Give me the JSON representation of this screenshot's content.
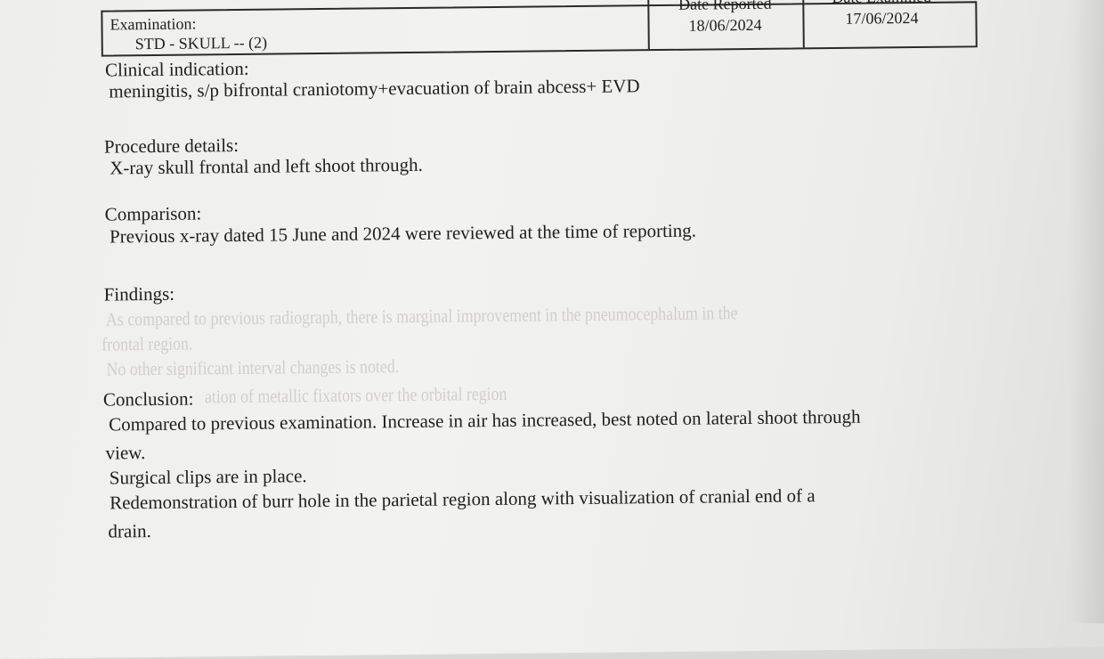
{
  "header": {
    "examination_label": "Examination:",
    "examination_value": "STD - SKULL -- (2)",
    "date_reported_label": "Date Reported",
    "date_reported_value": "18/06/2024",
    "date_examined_label": "Date Examined",
    "date_examined_value": "17/06/2024"
  },
  "clinical_indication": {
    "heading": "Clinical indication:",
    "text": "meningitis, s/p bifrontal craniotomy+evacuation of brain abcess+ EVD"
  },
  "procedure": {
    "heading": "Procedure details:",
    "text": "X-ray skull frontal and left shoot through."
  },
  "comparison": {
    "heading": "Comparison:",
    "text": "Previous x-ray dated 15 June and 2024 were reviewed at the time of reporting."
  },
  "findings": {
    "heading": "Findings:",
    "show_through_lines": [
      "As compared to previous radiograph, there is marginal improvement in the pneumocephalum in the",
      "frontal region.",
      "No other significant interval changes is noted.",
      "ation of metallic fixators over the orbital region"
    ]
  },
  "conclusion": {
    "heading": "Conclusion:",
    "lines": [
      "Compared to previous examination. Increase in air has increased, best noted on lateral shoot through",
      "view.",
      "Surgical clips are in place.",
      "Redemonstration of burr hole in the parietal region along with visualization of cranial end of a",
      "drain."
    ]
  }
}
